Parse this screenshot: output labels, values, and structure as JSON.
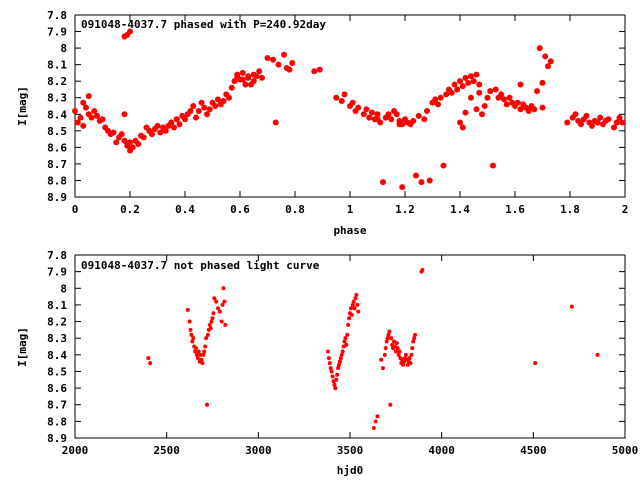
{
  "chart_data": [
    {
      "type": "scatter",
      "title": "091048-4037.7 phased with P=240.92day",
      "xlabel": "phase",
      "ylabel": "I[mag]",
      "xlim": [
        0,
        2
      ],
      "ylim": [
        7.8,
        8.9
      ],
      "y_inverted": true,
      "grid": false,
      "color": "#ff0000",
      "x_ticks": [
        "0",
        "0.2",
        "0.4",
        "0.6",
        "0.8",
        "1",
        "1.2",
        "1.4",
        "1.6",
        "1.8",
        "2"
      ],
      "y_ticks": [
        "7.8",
        "7.9",
        "8",
        "8.1",
        "8.2",
        "8.3",
        "8.4",
        "8.5",
        "8.6",
        "8.7",
        "8.8",
        "8.9"
      ],
      "points": [
        [
          0.0,
          8.38
        ],
        [
          0.01,
          8.45
        ],
        [
          0.02,
          8.42
        ],
        [
          0.03,
          8.33
        ],
        [
          0.03,
          8.47
        ],
        [
          0.04,
          8.36
        ],
        [
          0.05,
          8.4
        ],
        [
          0.05,
          8.29
        ],
        [
          0.06,
          8.42
        ],
        [
          0.07,
          8.38
        ],
        [
          0.08,
          8.41
        ],
        [
          0.09,
          8.44
        ],
        [
          0.1,
          8.43
        ],
        [
          0.11,
          8.48
        ],
        [
          0.12,
          8.5
        ],
        [
          0.13,
          8.52
        ],
        [
          0.14,
          8.51
        ],
        [
          0.15,
          8.57
        ],
        [
          0.16,
          8.54
        ],
        [
          0.17,
          8.52
        ],
        [
          0.18,
          8.56
        ],
        [
          0.18,
          8.4
        ],
        [
          0.19,
          8.59
        ],
        [
          0.2,
          8.62
        ],
        [
          0.2,
          8.57
        ],
        [
          0.21,
          8.6
        ],
        [
          0.22,
          8.56
        ],
        [
          0.23,
          8.58
        ],
        [
          0.24,
          8.53
        ],
        [
          0.25,
          8.54
        ],
        [
          0.26,
          8.48
        ],
        [
          0.27,
          8.5
        ],
        [
          0.28,
          8.52
        ],
        [
          0.29,
          8.49
        ],
        [
          0.3,
          8.47
        ],
        [
          0.31,
          8.51
        ],
        [
          0.32,
          8.48
        ],
        [
          0.33,
          8.5
        ],
        [
          0.34,
          8.47
        ],
        [
          0.35,
          8.45
        ],
        [
          0.36,
          8.48
        ],
        [
          0.37,
          8.43
        ],
        [
          0.38,
          8.46
        ],
        [
          0.39,
          8.41
        ],
        [
          0.4,
          8.43
        ],
        [
          0.41,
          8.4
        ],
        [
          0.42,
          8.38
        ],
        [
          0.43,
          8.35
        ],
        [
          0.44,
          8.42
        ],
        [
          0.45,
          8.38
        ],
        [
          0.46,
          8.33
        ],
        [
          0.47,
          8.36
        ],
        [
          0.48,
          8.4
        ],
        [
          0.49,
          8.37
        ],
        [
          0.5,
          8.33
        ],
        [
          0.51,
          8.35
        ],
        [
          0.52,
          8.31
        ],
        [
          0.53,
          8.34
        ],
        [
          0.54,
          8.32
        ],
        [
          0.55,
          8.28
        ],
        [
          0.56,
          8.3
        ],
        [
          0.57,
          8.24
        ],
        [
          0.58,
          8.2
        ],
        [
          0.59,
          8.16
        ],
        [
          0.6,
          8.19
        ],
        [
          0.61,
          8.15
        ],
        [
          0.62,
          8.22
        ],
        [
          0.63,
          8.18
        ],
        [
          0.64,
          8.22
        ],
        [
          0.65,
          8.2
        ],
        [
          0.66,
          8.17
        ],
        [
          0.67,
          8.14
        ],
        [
          0.68,
          8.18
        ],
        [
          0.7,
          8.06
        ],
        [
          0.72,
          8.07
        ],
        [
          0.73,
          8.45
        ],
        [
          0.74,
          8.1
        ],
        [
          0.76,
          8.04
        ],
        [
          0.78,
          8.13
        ],
        [
          0.79,
          8.09
        ],
        [
          0.87,
          8.14
        ],
        [
          0.89,
          8.13
        ],
        [
          0.95,
          8.3
        ],
        [
          0.97,
          8.32
        ],
        [
          0.98,
          8.28
        ],
        [
          1.0,
          8.35
        ],
        [
          1.01,
          8.33
        ],
        [
          1.02,
          8.38
        ],
        [
          1.03,
          8.36
        ],
        [
          1.05,
          8.4
        ],
        [
          1.06,
          8.37
        ],
        [
          1.07,
          8.42
        ],
        [
          1.08,
          8.39
        ],
        [
          1.09,
          8.43
        ],
        [
          1.1,
          8.4
        ],
        [
          1.11,
          8.45
        ],
        [
          1.12,
          8.81
        ],
        [
          1.13,
          8.42
        ],
        [
          1.14,
          8.4
        ],
        [
          1.15,
          8.43
        ],
        [
          1.16,
          8.38
        ],
        [
          1.17,
          8.4
        ],
        [
          1.18,
          8.44
        ],
        [
          1.19,
          8.46
        ],
        [
          1.19,
          8.84
        ],
        [
          1.2,
          8.43
        ],
        [
          1.21,
          8.45
        ],
        [
          1.22,
          8.46
        ],
        [
          1.23,
          8.44
        ],
        [
          1.24,
          8.77
        ],
        [
          1.25,
          8.41
        ],
        [
          1.26,
          8.81
        ],
        [
          1.27,
          8.43
        ],
        [
          1.28,
          8.38
        ],
        [
          1.29,
          8.8
        ],
        [
          1.3,
          8.33
        ],
        [
          1.31,
          8.31
        ],
        [
          1.32,
          8.34
        ],
        [
          1.33,
          8.3
        ],
        [
          1.34,
          8.71
        ],
        [
          1.35,
          8.28
        ],
        [
          1.36,
          8.25
        ],
        [
          1.37,
          8.27
        ],
        [
          1.38,
          8.22
        ],
        [
          1.39,
          8.25
        ],
        [
          1.4,
          8.2
        ],
        [
          1.41,
          8.23
        ],
        [
          1.42,
          8.18
        ],
        [
          1.43,
          8.21
        ],
        [
          1.44,
          8.17
        ],
        [
          1.45,
          8.2
        ],
        [
          1.46,
          8.16
        ],
        [
          1.47,
          8.22
        ],
        [
          1.48,
          8.4
        ],
        [
          1.49,
          8.35
        ],
        [
          1.5,
          8.3
        ],
        [
          1.51,
          8.26
        ],
        [
          1.52,
          8.71
        ],
        [
          1.53,
          8.25
        ],
        [
          1.54,
          8.3
        ],
        [
          1.55,
          8.28
        ],
        [
          1.56,
          8.31
        ],
        [
          1.57,
          8.34
        ],
        [
          1.58,
          8.3
        ],
        [
          1.59,
          8.33
        ],
        [
          1.6,
          8.35
        ],
        [
          1.61,
          8.33
        ],
        [
          1.62,
          8.37
        ],
        [
          1.63,
          8.34
        ],
        [
          1.64,
          8.36
        ],
        [
          1.65,
          8.38
        ],
        [
          1.66,
          8.35
        ],
        [
          1.67,
          8.37
        ],
        [
          1.68,
          8.26
        ],
        [
          1.69,
          8.0
        ],
        [
          1.7,
          8.21
        ],
        [
          1.71,
          8.05
        ],
        [
          1.72,
          8.11
        ],
        [
          1.73,
          8.08
        ],
        [
          1.7,
          8.36
        ],
        [
          1.79,
          8.45
        ],
        [
          1.81,
          8.42
        ],
        [
          1.82,
          8.4
        ],
        [
          1.83,
          8.44
        ],
        [
          1.84,
          8.46
        ],
        [
          1.85,
          8.43
        ],
        [
          1.86,
          8.41
        ],
        [
          1.87,
          8.45
        ],
        [
          1.88,
          8.47
        ],
        [
          1.89,
          8.44
        ],
        [
          1.9,
          8.45
        ],
        [
          1.91,
          8.42
        ],
        [
          1.92,
          8.46
        ],
        [
          1.93,
          8.44
        ],
        [
          1.94,
          8.43
        ],
        [
          1.96,
          8.48
        ],
        [
          1.97,
          8.45
        ],
        [
          1.98,
          8.42
        ],
        [
          1.99,
          8.45
        ],
        [
          0.18,
          7.93
        ],
        [
          0.19,
          7.92
        ],
        [
          0.2,
          7.9
        ],
        [
          0.59,
          8.17
        ],
        [
          0.61,
          8.19
        ],
        [
          0.63,
          8.17
        ],
        [
          0.65,
          8.16
        ],
        [
          0.77,
          8.12
        ],
        [
          1.46,
          8.37
        ],
        [
          1.42,
          8.39
        ],
        [
          1.44,
          8.3
        ],
        [
          1.47,
          8.27
        ],
        [
          1.4,
          8.45
        ],
        [
          1.41,
          8.48
        ],
        [
          1.62,
          8.22
        ],
        [
          1.18,
          8.46
        ],
        [
          1.1,
          8.43
        ]
      ]
    },
    {
      "type": "scatter",
      "title": "091048-4037.7 not phased light curve",
      "xlabel": "hjd0",
      "ylabel": "I[mag]",
      "xlim": [
        2000,
        5000
      ],
      "ylim": [
        7.8,
        8.9
      ],
      "y_inverted": true,
      "grid": false,
      "color": "#ff0000",
      "x_ticks": [
        "2000",
        "2500",
        "3000",
        "3500",
        "4000",
        "4500",
        "5000"
      ],
      "y_ticks": [
        "7.8",
        "7.9",
        "8",
        "8.1",
        "8.2",
        "8.3",
        "8.4",
        "8.5",
        "8.6",
        "8.7",
        "8.8",
        "8.9"
      ],
      "points": [
        [
          2400,
          8.42
        ],
        [
          2410,
          8.45
        ],
        [
          2615,
          8.13
        ],
        [
          2625,
          8.2
        ],
        [
          2630,
          8.25
        ],
        [
          2635,
          8.28
        ],
        [
          2640,
          8.32
        ],
        [
          2645,
          8.3
        ],
        [
          2650,
          8.35
        ],
        [
          2655,
          8.38
        ],
        [
          2660,
          8.36
        ],
        [
          2665,
          8.4
        ],
        [
          2670,
          8.42
        ],
        [
          2675,
          8.38
        ],
        [
          2680,
          8.44
        ],
        [
          2685,
          8.4
        ],
        [
          2690,
          8.43
        ],
        [
          2695,
          8.45
        ],
        [
          2700,
          8.4
        ],
        [
          2705,
          8.38
        ],
        [
          2710,
          8.35
        ],
        [
          2715,
          8.3
        ],
        [
          2720,
          8.7
        ],
        [
          2725,
          8.28
        ],
        [
          2730,
          8.25
        ],
        [
          2735,
          8.22
        ],
        [
          2740,
          8.24
        ],
        [
          2745,
          8.2
        ],
        [
          2750,
          8.18
        ],
        [
          2755,
          8.15
        ],
        [
          2760,
          8.06
        ],
        [
          2770,
          8.08
        ],
        [
          2780,
          8.12
        ],
        [
          2790,
          8.14
        ],
        [
          2800,
          8.2
        ],
        [
          2805,
          8.1
        ],
        [
          2810,
          8.0
        ],
        [
          2815,
          8.08
        ],
        [
          2820,
          8.22
        ],
        [
          3380,
          8.38
        ],
        [
          3385,
          8.42
        ],
        [
          3390,
          8.45
        ],
        [
          3395,
          8.48
        ],
        [
          3400,
          8.5
        ],
        [
          3405,
          8.53
        ],
        [
          3410,
          8.56
        ],
        [
          3415,
          8.58
        ],
        [
          3420,
          8.6
        ],
        [
          3425,
          8.55
        ],
        [
          3430,
          8.52
        ],
        [
          3435,
          8.48
        ],
        [
          3440,
          8.46
        ],
        [
          3445,
          8.44
        ],
        [
          3450,
          8.42
        ],
        [
          3455,
          8.4
        ],
        [
          3460,
          8.38
        ],
        [
          3465,
          8.35
        ],
        [
          3470,
          8.32
        ],
        [
          3475,
          8.3
        ],
        [
          3480,
          8.34
        ],
        [
          3485,
          8.28
        ],
        [
          3490,
          8.22
        ],
        [
          3495,
          8.18
        ],
        [
          3500,
          8.15
        ],
        [
          3505,
          8.12
        ],
        [
          3510,
          8.16
        ],
        [
          3515,
          8.1
        ],
        [
          3520,
          8.08
        ],
        [
          3525,
          8.12
        ],
        [
          3530,
          8.06
        ],
        [
          3535,
          8.04
        ],
        [
          3540,
          8.1
        ],
        [
          3545,
          8.14
        ],
        [
          3630,
          8.84
        ],
        [
          3640,
          8.8
        ],
        [
          3650,
          8.77
        ],
        [
          3670,
          8.43
        ],
        [
          3680,
          8.48
        ],
        [
          3690,
          8.4
        ],
        [
          3695,
          8.36
        ],
        [
          3700,
          8.32
        ],
        [
          3705,
          8.3
        ],
        [
          3710,
          8.28
        ],
        [
          3715,
          8.26
        ],
        [
          3720,
          8.7
        ],
        [
          3725,
          8.3
        ],
        [
          3730,
          8.34
        ],
        [
          3735,
          8.36
        ],
        [
          3740,
          8.32
        ],
        [
          3745,
          8.35
        ],
        [
          3750,
          8.38
        ],
        [
          3755,
          8.33
        ],
        [
          3760,
          8.36
        ],
        [
          3765,
          8.4
        ],
        [
          3770,
          8.38
        ],
        [
          3775,
          8.42
        ],
        [
          3780,
          8.45
        ],
        [
          3785,
          8.43
        ],
        [
          3790,
          8.46
        ],
        [
          3795,
          8.44
        ],
        [
          3800,
          8.42
        ],
        [
          3805,
          8.4
        ],
        [
          3810,
          8.43
        ],
        [
          3815,
          8.46
        ],
        [
          3820,
          8.44
        ],
        [
          3825,
          8.42
        ],
        [
          3830,
          8.45
        ],
        [
          3835,
          8.4
        ],
        [
          3840,
          8.36
        ],
        [
          3845,
          8.32
        ],
        [
          3850,
          8.3
        ],
        [
          3855,
          8.28
        ],
        [
          3890,
          7.9
        ],
        [
          3895,
          7.89
        ],
        [
          4510,
          8.45
        ],
        [
          4710,
          8.11
        ],
        [
          4850,
          8.4
        ]
      ]
    }
  ]
}
